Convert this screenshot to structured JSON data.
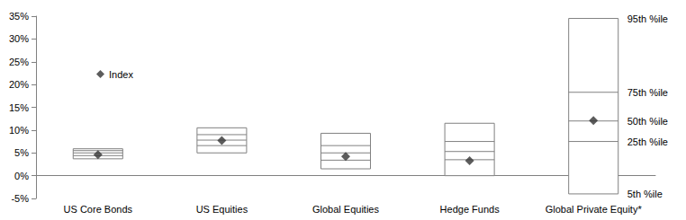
{
  "chart_data": {
    "type": "box",
    "categories": [
      "US Core Bonds",
      "US Equities",
      "Global Equities",
      "Hedge Funds",
      "Global Private Equity*"
    ],
    "percentiles": [
      {
        "name": "5th %ile",
        "values": [
          3.7,
          5.0,
          1.5,
          0.0,
          -4.0
        ]
      },
      {
        "name": "25th %ile",
        "values": [
          4.4,
          6.6,
          3.4,
          3.5,
          7.5
        ]
      },
      {
        "name": "50th %ile",
        "values": [
          5.0,
          7.8,
          5.0,
          5.3,
          12.0
        ]
      },
      {
        "name": "75th %ile",
        "values": [
          5.5,
          9.0,
          6.6,
          7.5,
          18.3
        ]
      },
      {
        "name": "95th %ile",
        "values": [
          5.9,
          10.5,
          9.3,
          11.5,
          34.5
        ]
      }
    ],
    "color": "#808080",
    "series": [
      {
        "name": "Index",
        "type": "scatter",
        "marker": "diamond",
        "color": "#333333",
        "values": [
          4.6,
          7.7,
          4.2,
          3.3,
          12.1
        ]
      }
    ],
    "ylim": [
      -5,
      35
    ],
    "yticks": [
      {
        "value": -5,
        "label": "-5%"
      },
      {
        "value": 0,
        "label": "0%"
      },
      {
        "value": 5,
        "label": "5%"
      },
      {
        "value": 10,
        "label": "10%"
      },
      {
        "value": 15,
        "label": "15%"
      },
      {
        "value": 20,
        "label": "20%"
      },
      {
        "value": 25,
        "label": "25%"
      },
      {
        "value": 30,
        "label": "30%"
      },
      {
        "value": 35,
        "label": "35%"
      }
    ],
    "grid": false,
    "legend": "upper left"
  }
}
